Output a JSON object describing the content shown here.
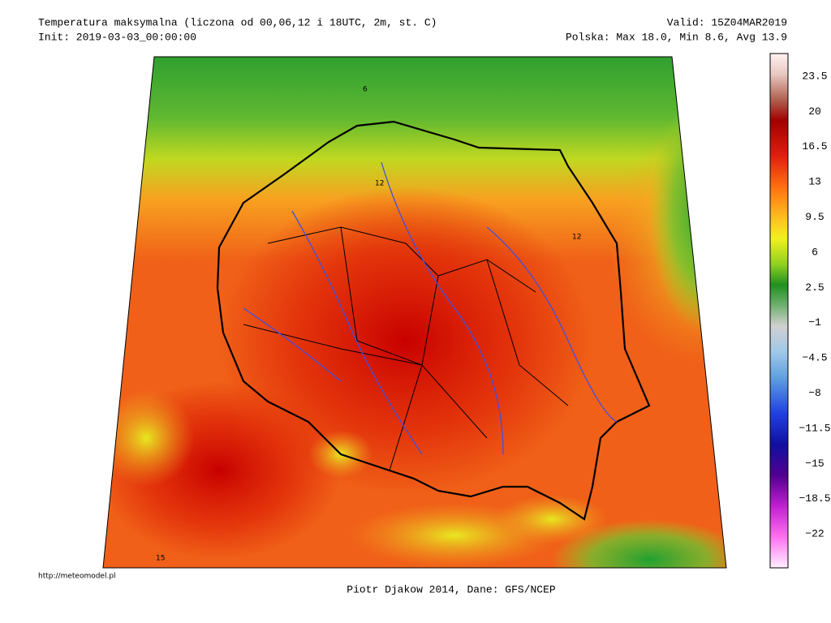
{
  "header": {
    "title": "Temperatura maksymalna (liczona od 00,06,12 i 18UTC, 2m, st. C)",
    "init": "Init: 2019-03-03_00:00:00",
    "valid": "Valid: 15Z04MAR2019",
    "stats": "Polska: Max 18.0, Min  8.6, Avg 13.9"
  },
  "colorbar": {
    "labels": [
      "23.5",
      "20",
      "16.5",
      "13",
      "9.5",
      "6",
      "2.5",
      "−1",
      "−4.5",
      "−8",
      "−11.5",
      "−15",
      "−18.5",
      "−22"
    ]
  },
  "map": {
    "contour_labels": [
      "6",
      "12",
      "12",
      "15"
    ]
  },
  "footer": {
    "url": "http://meteomodel.pl",
    "credit": "Piotr Djakow 2014, Dane: GFS/NCEP"
  }
}
